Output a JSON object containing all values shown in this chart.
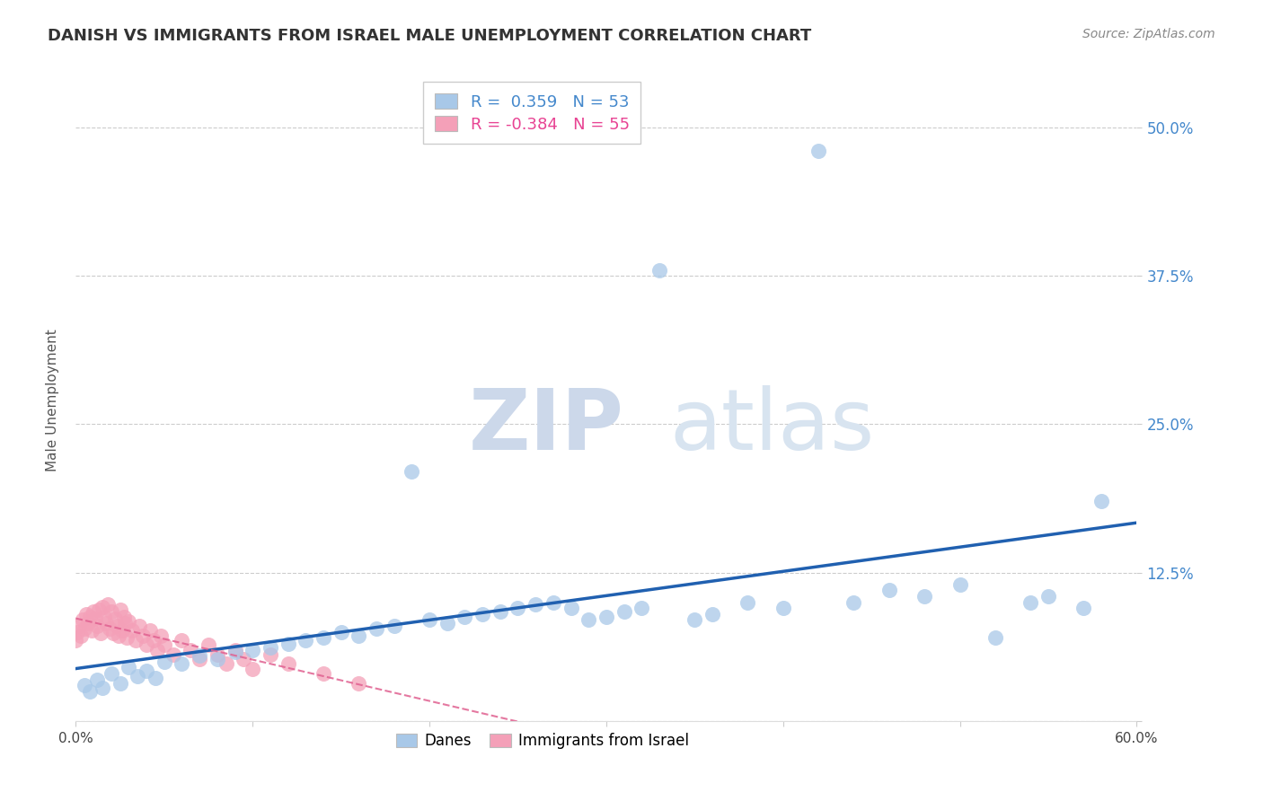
{
  "title": "DANISH VS IMMIGRANTS FROM ISRAEL MALE UNEMPLOYMENT CORRELATION CHART",
  "source": "Source: ZipAtlas.com",
  "ylabel": "Male Unemployment",
  "r_blue": 0.359,
  "n_blue": 53,
  "r_pink": -0.384,
  "n_pink": 55,
  "blue_color": "#a8c8e8",
  "pink_color": "#f4a0b8",
  "blue_line_color": "#2060b0",
  "pink_line_color": "#e06090",
  "xlim": [
    0.0,
    0.6
  ],
  "ylim": [
    0.0,
    0.54
  ],
  "ytick_vals": [
    0.0,
    0.125,
    0.25,
    0.375,
    0.5
  ],
  "ytick_labels": [
    "",
    "12.5%",
    "25.0%",
    "37.5%",
    "50.0%"
  ],
  "xtick_vals": [
    0.0,
    0.1,
    0.2,
    0.3,
    0.4,
    0.5,
    0.6
  ],
  "xtick_labels": [
    "0.0%",
    "",
    "",
    "",
    "",
    "",
    "60.0%"
  ],
  "legend_blue": "Danes",
  "legend_pink": "Immigrants from Israel",
  "watermark_zip": "ZIP",
  "watermark_atlas": "atlas",
  "title_fontsize": 13,
  "source_fontsize": 10,
  "ylabel_fontsize": 11,
  "blue_x": [
    0.005,
    0.008,
    0.012,
    0.015,
    0.02,
    0.025,
    0.03,
    0.035,
    0.04,
    0.045,
    0.05,
    0.06,
    0.07,
    0.08,
    0.09,
    0.1,
    0.11,
    0.12,
    0.13,
    0.14,
    0.15,
    0.16,
    0.17,
    0.18,
    0.19,
    0.2,
    0.21,
    0.22,
    0.23,
    0.24,
    0.25,
    0.26,
    0.27,
    0.28,
    0.29,
    0.3,
    0.31,
    0.32,
    0.33,
    0.35,
    0.36,
    0.38,
    0.4,
    0.42,
    0.44,
    0.46,
    0.48,
    0.5,
    0.52,
    0.54,
    0.55,
    0.57,
    0.58
  ],
  "blue_y": [
    0.03,
    0.025,
    0.035,
    0.028,
    0.04,
    0.032,
    0.045,
    0.038,
    0.042,
    0.036,
    0.05,
    0.048,
    0.055,
    0.052,
    0.058,
    0.06,
    0.062,
    0.065,
    0.068,
    0.07,
    0.075,
    0.072,
    0.078,
    0.08,
    0.21,
    0.085,
    0.082,
    0.088,
    0.09,
    0.092,
    0.095,
    0.098,
    0.1,
    0.095,
    0.085,
    0.088,
    0.092,
    0.095,
    0.38,
    0.085,
    0.09,
    0.1,
    0.095,
    0.48,
    0.1,
    0.11,
    0.105,
    0.115,
    0.07,
    0.1,
    0.105,
    0.095,
    0.185
  ],
  "pink_x": [
    0.0,
    0.001,
    0.002,
    0.003,
    0.004,
    0.005,
    0.006,
    0.007,
    0.008,
    0.009,
    0.01,
    0.011,
    0.012,
    0.013,
    0.014,
    0.015,
    0.016,
    0.017,
    0.018,
    0.019,
    0.02,
    0.021,
    0.022,
    0.023,
    0.024,
    0.025,
    0.026,
    0.027,
    0.028,
    0.029,
    0.03,
    0.032,
    0.034,
    0.036,
    0.038,
    0.04,
    0.042,
    0.044,
    0.046,
    0.048,
    0.05,
    0.055,
    0.06,
    0.065,
    0.07,
    0.075,
    0.08,
    0.085,
    0.09,
    0.095,
    0.1,
    0.11,
    0.12,
    0.14,
    0.16
  ],
  "pink_y": [
    0.068,
    0.075,
    0.08,
    0.072,
    0.085,
    0.078,
    0.09,
    0.082,
    0.088,
    0.076,
    0.092,
    0.086,
    0.08,
    0.094,
    0.074,
    0.096,
    0.088,
    0.082,
    0.098,
    0.078,
    0.092,
    0.074,
    0.086,
    0.08,
    0.072,
    0.094,
    0.076,
    0.088,
    0.082,
    0.07,
    0.084,
    0.076,
    0.068,
    0.08,
    0.072,
    0.064,
    0.076,
    0.068,
    0.06,
    0.072,
    0.064,
    0.056,
    0.068,
    0.06,
    0.052,
    0.064,
    0.056,
    0.048,
    0.06,
    0.052,
    0.044,
    0.056,
    0.048,
    0.04,
    0.032
  ]
}
